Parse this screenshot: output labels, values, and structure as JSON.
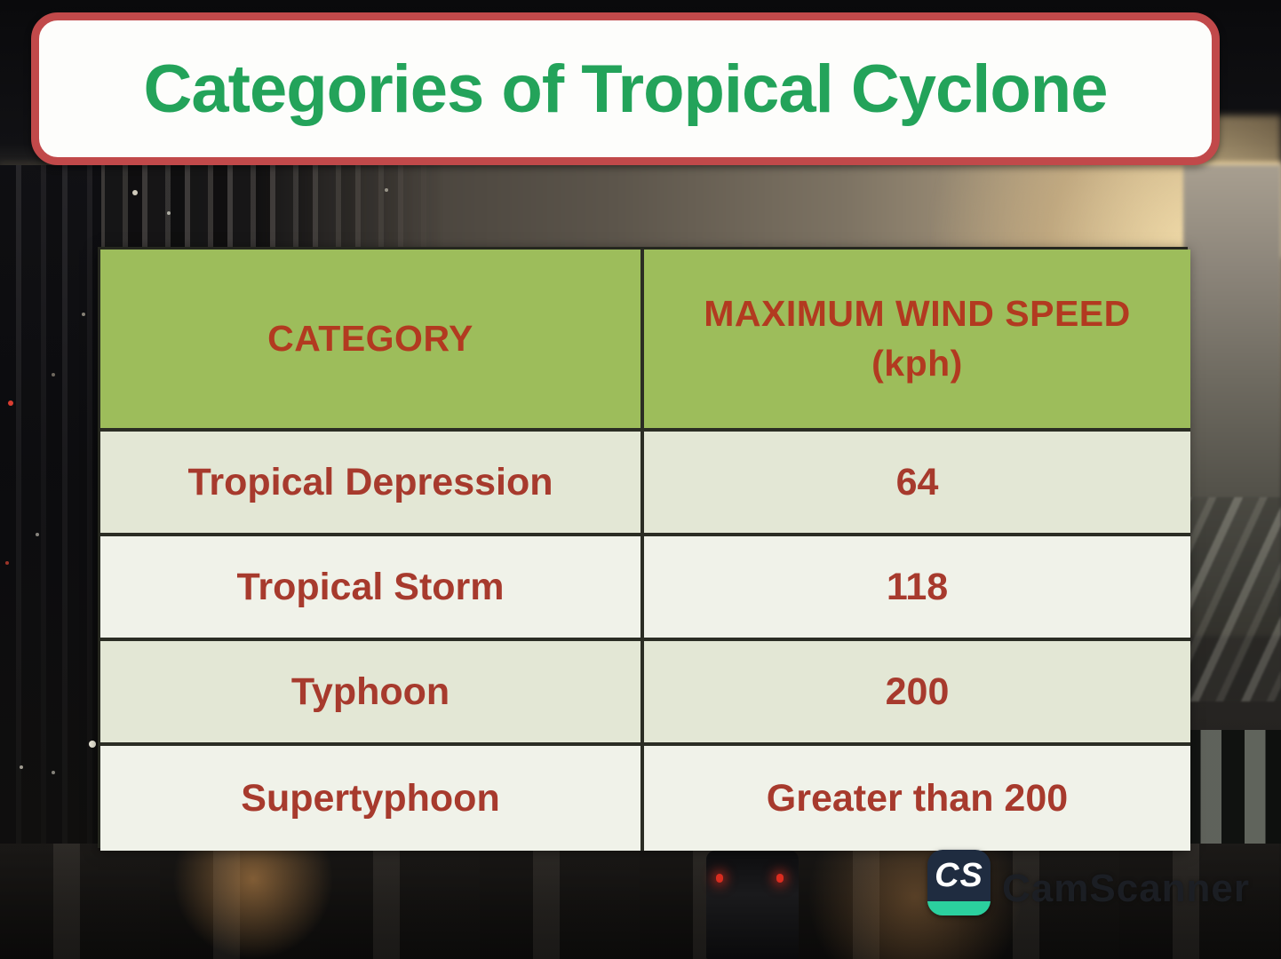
{
  "title": "Categories of Tropical Cyclone",
  "table": {
    "columns": {
      "category_header": "CATEGORY",
      "wind_header_line1": "MAXIMUM WIND SPEED",
      "wind_header_line2": "(kph)"
    },
    "rows": [
      {
        "category": "Tropical Depression",
        "speed": "64"
      },
      {
        "category": "Tropical Storm",
        "speed": "118"
      },
      {
        "category": "Typhoon",
        "speed": "200"
      },
      {
        "category": "Supertyphoon",
        "speed": "Greater than 200"
      }
    ]
  },
  "watermark": {
    "logo_text": "CS",
    "brand": "CamScanner"
  },
  "colors": {
    "title_text_green": "#23a35a",
    "title_border_red": "#c1494a",
    "title_background": "#fdfdfb",
    "header_background_green": "#9dbd5b",
    "header_text_red": "#b23a20",
    "body_text_red": "#a73a2d",
    "row_odd_background": "#e3e7d5",
    "row_even_background": "#f0f2e9",
    "table_border": "#2b2d24",
    "logo_navy": "#1f2c40",
    "logo_teal": "#2bd09e"
  }
}
